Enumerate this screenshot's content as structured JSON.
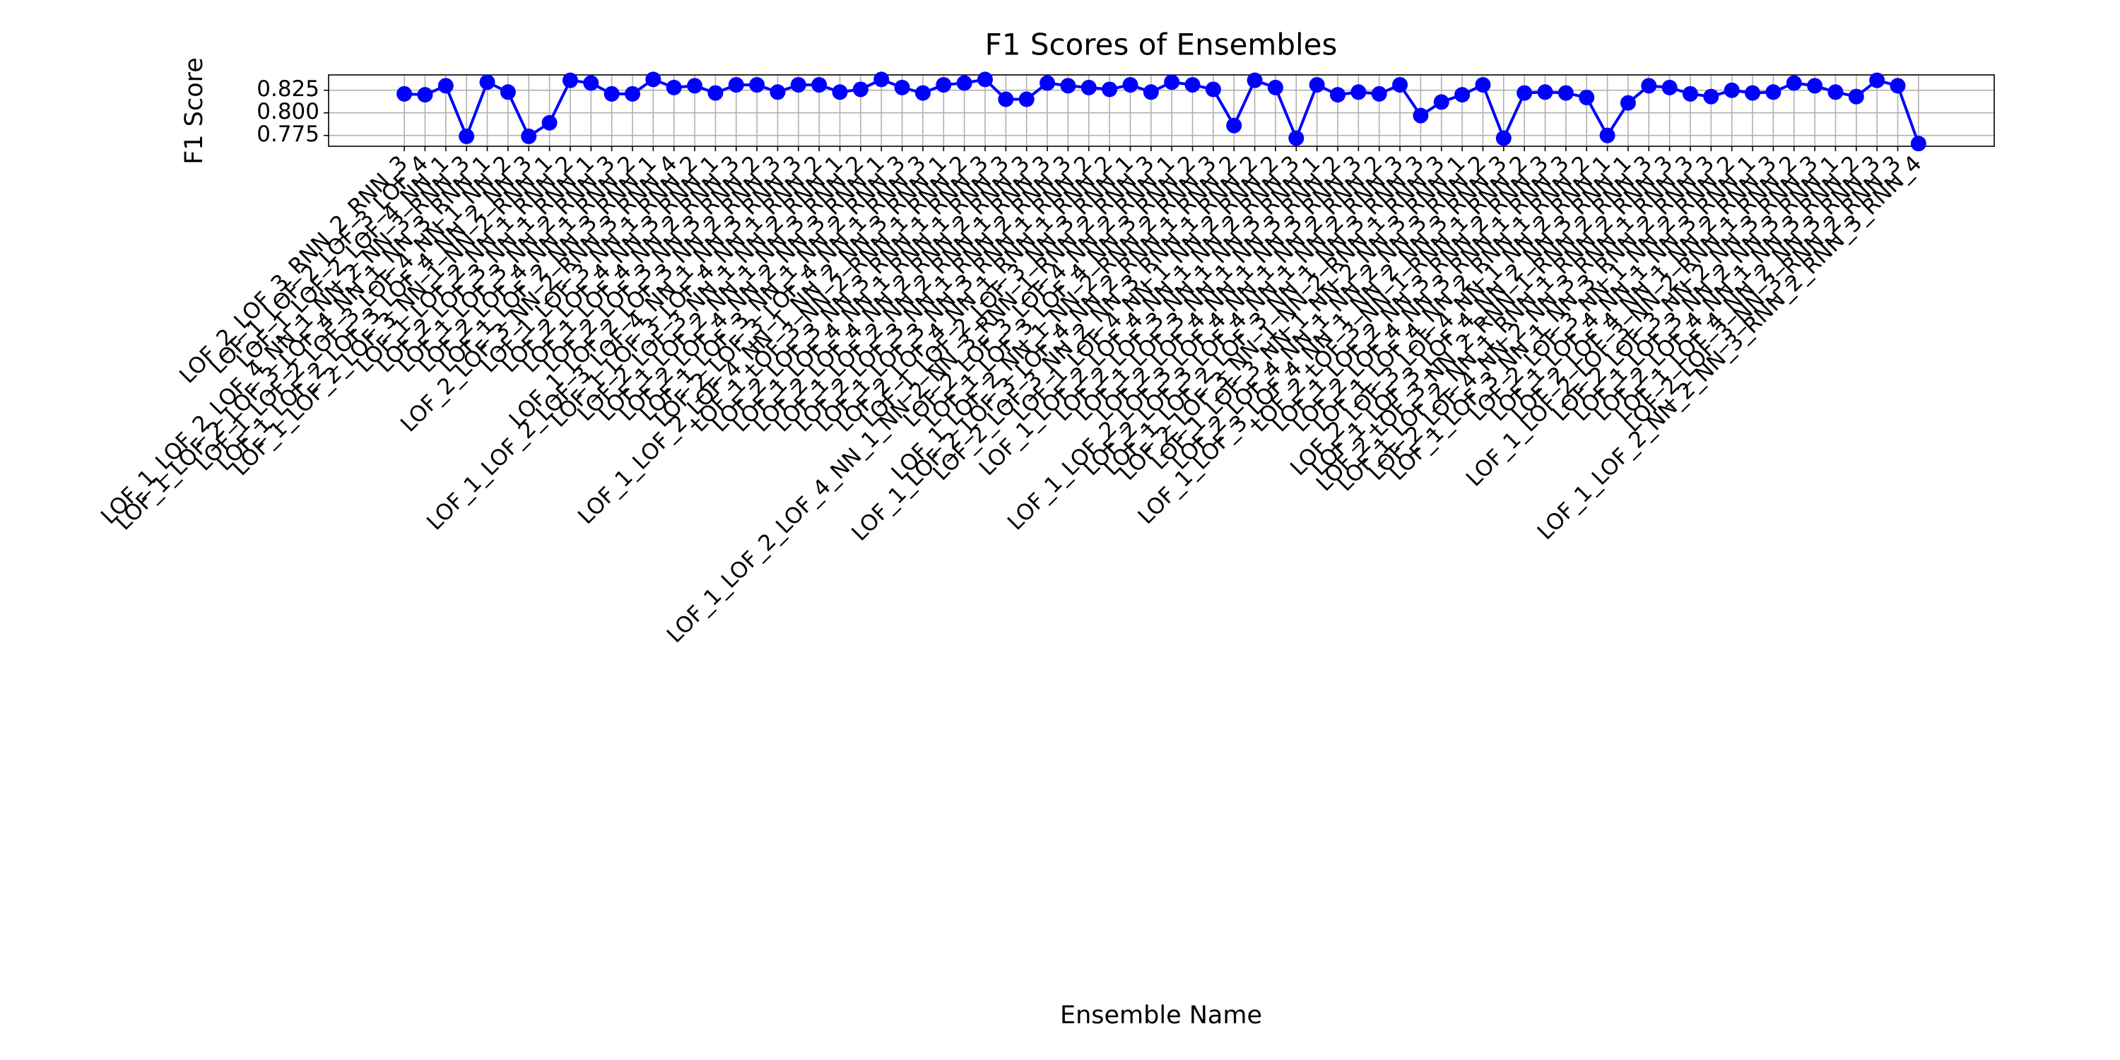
{
  "chart_data": {
    "type": "line",
    "title": "F1 Scores of Ensembles",
    "xlabel": "Ensemble Name",
    "ylabel": "F1 Score",
    "categories": [
      "LOF_2_LOF_3_RNN_2_RNN_3",
      "LOF_1_LOF_2_LOF_3_LOF_4",
      "LOF_1_LOF_2_LOF_4_NN_1",
      "LOF_1_LOF_2_LOF_4_NN_1_NN_2_NN_3_RNN_3",
      "LOF_1_LOF_2_LOF_3_LOF_4_NN_1_NN_3_RNN_1",
      "LOF_1_LOF_2_LOF_3_LOF_4_NN_1_NN_2",
      "LOF_1_LOF_2_LOF_3_LOF_4_NN_2_NN_3",
      "LOF_1_LOF_2_LOF_3_NN_1_NN_2_RNN_1",
      "LOF_1_LOF_2_NN_1_RNN_2",
      "LOF_2_LOF_3_NN_1_RNN_1",
      "LOF_1_LOF_3_NN_2_RNN_3",
      "LOF_2_LOF_4_NN_1_RNN_2",
      "LOF_1_LOF_2_NN_3_RNN_1",
      "LOF_2_LOF_3_NN_2_RNN_3_RNN_4",
      "LOF_1_LOF_3_NN_1_RNN_2",
      "LOF_2_LOF_4_NN_3_RNN_1",
      "LOF_1_LOF_4_NN_2_RNN_3",
      "LOF_2_LOF_3_NN_3_RNN_2",
      "LOF_1_LOF_2_LOF_3_NN_2_RNN_3",
      "LOF_1_LOF_2_LOF_3_LOF_4_NN_1_NN_3_RNN_3",
      "LOF_1_LOF_3_LOF_4_NN_1_RNN_2",
      "LOF_2_LOF_3_NN_1_NN_2_RNN_1",
      "LOF_1_LOF_2_NN_1_NN_3_RNN_2",
      "LOF_2_LOF_4_NN_2_NN_3_RNN_1",
      "LOF_1_LOF_3_NN_1_NN_2_RNN_3",
      "LOF_2_LOF_3_LOF_4_NN_1_RNN_3",
      "LOF_1_LOF_2_LOF_4_NN_1_NN_2_NN_3_RNN_1",
      "LOF_1_LOF_3_NN_2_RNN_1_RNN_2",
      "LOF_2_LOF_3_NN_3_RNN_1_RNN_3",
      "LOF_1_LOF_4_NN_1_RNN_1_RNN_3",
      "LOF_2_LOF_4_NN_2_RNN_2_RNN_3",
      "LOF_1_LOF_2_NN_2_RNN_1_RNN_3",
      "LOF_2_LOF_3_NN_1_RNN_2_RNN_3",
      "LOF_1_LOF_3_NN_3_RNN_1_RNN_2",
      "LOF_2_LOF_4_NN_1_RNN_1_RNN_2",
      "LOF_1_LOF_2_LOF_3_NN_3_RNN_1",
      "LOF_1_LOF_2_LOF_4_NN_1_NN_2_NN_3_RNN_1_RNN_2_RNN_3",
      "LOF_2_LOF_3_LOF_4_NN_2_RNN_1",
      "LOF_1_LOF_3_LOF_4_NN_3_RNN_2",
      "LOF_1_LOF_2_NN_1_NN_2_RNN_2_RNN_3",
      "LOF_1_LOF_2_LOF_3_LOF_4_NN_2_RNN_1_RNN_2",
      "LOF_2_LOF_3_NN_2_NN_3_RNN_1_RNN_2",
      "LOF_1_LOF_4_NN_1_NN_2_RNN_2",
      "LOF_1_LOF_2_LOF_4_NN_1_NN_2_RNN_3",
      "LOF_2_LOF_3_NN_1_NN_3_RNN_1",
      "LOF_1_LOF_3_NN_1_NN_3_RNN_2",
      "LOF_2_LOF_4_NN_1_NN_3_RNN_3",
      "LOF_1_LOF_2_LOF_3_LOF_4_NN_1_NN_2_RNN_2",
      "LOF_2_LOF_3_LOF_4_NN_1_NN_2_RNN_3",
      "LOF_1_LOF_2_LOF_3_NN_1_NN_3_RNN_3",
      "LOF_2_LOF_3_NN_1_NN_2_RNN_1_RNN_3",
      "LOF_1_LOF_3_NN_1_NN_2_NN_3_RNN_1",
      "LOF_2_LOF_4_NN_1_NN_2_NN_3_RNN_2",
      "LOF_1_LOF_3_LOF_4_NN_1_NN_2_NN_3_RNN_3",
      "LOF_2_LOF_3_NN_1_RNN_1_RNN_2",
      "LOF_1_LOF_2_NN_3_RNN_2_RNN_3",
      "LOF_2_LOF_4_NN_3_RNN_1_RNN_3",
      "LOF_1_LOF_4_NN_2_RNN_1_RNN_2",
      "LOF_2_LOF_3_LOF_4_NN_1_NN_2_RNN_1",
      "LOF_1_LOF_3_LOF_4_NN_2_NN_3_RNN_1",
      "LOF_2_LOF_3_NN_2_RNN_1_RNN_2_RNN_3",
      "LOF_1_LOF_2_NN_1_RNN_1_RNN_2_RNN_3",
      "LOF_2_LOF_4_NN_2_NN_3_RNN_1_RNN_3",
      "LOF_1_LOF_3_NN_1_NN_3_RNN_2_RNN_3",
      "LOF_2_LOF_3_NN_1_NN_2_RNN_2",
      "LOF_1_LOF_4_NN_1_NN_3_RNN_1",
      "LOF_2_LOF_4_NN_1_NN_2_RNN_3",
      "LOF_1_LOF_2_LOF_3_NN_2_RNN_1_RNN_2",
      "LOF_2_LOF_3_NN_2_NN_3_RNN_3",
      "LOF_1_LOF_3_NN_2_NN_3_RNN_1",
      "LOF_2_LOF_4_NN_1_NN_3_RNN_2",
      "LOF_1_LOF_4_NN_2_NN_3_RNN_3",
      "LOF_2_LOF_3_NN_3_RNN_2_RNN_3",
      "LOF_1_LOF_2_NN_2_NN_3_RNN_2_RNN_3_RNN_4"
    ],
    "series": [
      {
        "name": "F1 Score",
        "color": "#0000ff",
        "values": [
          0.821,
          0.82,
          0.83,
          0.774,
          0.834,
          0.823,
          0.774,
          0.789,
          0.836,
          0.833,
          0.821,
          0.821,
          0.837,
          0.828,
          0.83,
          0.822,
          0.831,
          0.831,
          0.823,
          0.831,
          0.831,
          0.823,
          0.826,
          0.837,
          0.828,
          0.822,
          0.831,
          0.833,
          0.837,
          0.815,
          0.815,
          0.833,
          0.83,
          0.828,
          0.826,
          0.831,
          0.823,
          0.834,
          0.831,
          0.826,
          0.786,
          0.836,
          0.828,
          0.772,
          0.831,
          0.82,
          0.823,
          0.821,
          0.831,
          0.797,
          0.812,
          0.82,
          0.831,
          0.772,
          0.822,
          0.823,
          0.822,
          0.817,
          0.775,
          0.811,
          0.83,
          0.828,
          0.821,
          0.818,
          0.825,
          0.822,
          0.823,
          0.833,
          0.83,
          0.823,
          0.818,
          0.836,
          0.83,
          0.766
        ]
      }
    ],
    "ylim": [
      0.763,
      0.842
    ],
    "yticks": [
      0.775,
      {
        "value": 0.8,
        "label": "0.800"
      },
      0.825
    ],
    "grid": true
  }
}
